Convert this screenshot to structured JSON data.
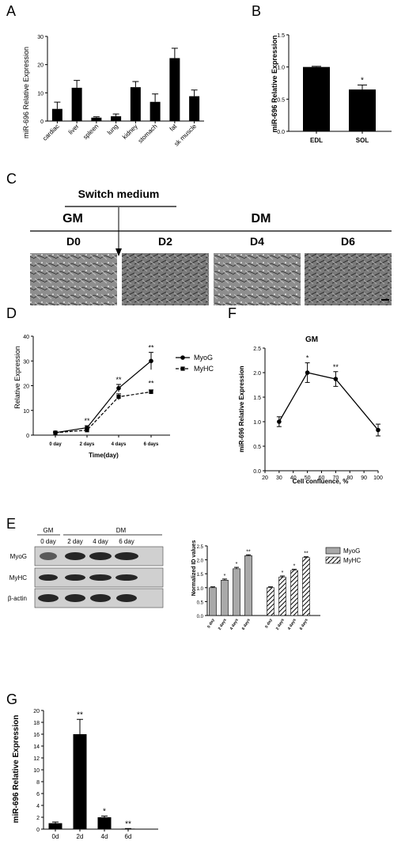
{
  "panels": {
    "A": {
      "letter": "A",
      "chart_data": {
        "type": "bar",
        "ylabel": "miR-696 Relative Expression",
        "ylim": [
          0,
          30
        ],
        "yticks": [
          0,
          10,
          20,
          30
        ],
        "categories": [
          "cardiac",
          "liver",
          "spleen",
          "lung",
          "kidney",
          "stomach",
          "fat",
          "sk muscle"
        ],
        "values": [
          4.3,
          11.8,
          1.2,
          1.7,
          12.0,
          6.8,
          22.3,
          8.8
        ],
        "errors": [
          2.4,
          2.6,
          0.3,
          0.8,
          2.0,
          2.8,
          3.5,
          2.2
        ],
        "color": "#000000"
      }
    },
    "B": {
      "letter": "B",
      "chart_data": {
        "type": "bar",
        "ylabel": "miR-696 Relative Expression",
        "ylim": [
          0,
          1.5
        ],
        "yticks": [
          "0.0",
          "0.5",
          "1.0",
          "1.5"
        ],
        "categories": [
          "EDL",
          "SOL"
        ],
        "values": [
          1.0,
          0.65
        ],
        "errors": [
          0.01,
          0.07
        ],
        "annotations": [
          "",
          "*"
        ]
      }
    },
    "C": {
      "letter": "C",
      "switch_label": "Switch medium",
      "gm_label": "GM",
      "dm_label": "DM",
      "days": [
        "D0",
        "D2",
        "D4",
        "D6"
      ]
    },
    "D": {
      "letter": "D",
      "chart_data": {
        "type": "line",
        "xlabel": "Time(day)",
        "ylabel": "Relative Expression",
        "categories": [
          "0 day",
          "2 days",
          "4 days",
          "6 days"
        ],
        "ylim": [
          0,
          40
        ],
        "yticks": [
          0,
          10,
          20,
          30,
          40
        ],
        "series": [
          {
            "name": "MyoG",
            "values": [
              1,
              3,
              19,
              30
            ],
            "errors": [
              0.3,
              0.8,
              1.5,
              3.5
            ],
            "annotations": [
              "",
              "**",
              "**",
              "**"
            ]
          },
          {
            "name": "MyHC",
            "values": [
              1,
              2,
              15.5,
              17.5
            ],
            "errors": [
              0.3,
              0.5,
              1.2,
              0.8
            ],
            "annotations": [
              "",
              "",
              "",
              "**"
            ]
          }
        ]
      }
    },
    "F": {
      "letter": "F",
      "chart_data": {
        "type": "line",
        "title": "GM",
        "xlabel": "Cell confluence, %",
        "ylabel": "miR-696 Relative Expression",
        "x": [
          30,
          50,
          70,
          100
        ],
        "y": [
          1.0,
          2.0,
          1.87,
          0.83
        ],
        "errors": [
          0.1,
          0.2,
          0.15,
          0.12
        ],
        "annotations": [
          "",
          "*",
          "**",
          ""
        ],
        "xlim": [
          20,
          100
        ],
        "xticks": [
          20,
          30,
          40,
          50,
          60,
          70,
          80,
          90,
          100
        ],
        "ylim": [
          0,
          2.5
        ],
        "yticks": [
          "0.0",
          "0.5",
          "1.0",
          "1.5",
          "2.0",
          "2.5"
        ]
      }
    },
    "E": {
      "letter": "E",
      "blot": {
        "gm_label": "GM",
        "dm_label": "DM",
        "lanes": [
          "0 day",
          "2 day",
          "4 day",
          "6 day"
        ],
        "rows": [
          "MyoG",
          "MyHC",
          "β-actin"
        ]
      },
      "chart_data": {
        "type": "bar",
        "ylabel": "Normalized ID values",
        "ylim": [
          0,
          2.5
        ],
        "yticks": [
          "0.0",
          "0.5",
          "1.0",
          "1.5",
          "2.0",
          "2.5"
        ],
        "categories": [
          "0 day",
          "2 days",
          "4 days",
          "6 days"
        ],
        "series": [
          {
            "name": "MyoG",
            "values": [
              1.0,
              1.27,
              1.68,
              2.15
            ],
            "errors": [
              0.03,
              0.04,
              0.05,
              0.03
            ],
            "annotations": [
              "",
              "*",
              "*",
              "**"
            ]
          },
          {
            "name": "MyHC",
            "values": [
              1.0,
              1.38,
              1.62,
              2.08
            ],
            "errors": [
              0.03,
              0.04,
              0.04,
              0.03
            ],
            "annotations": [
              "",
              "*",
              "*",
              "**"
            ]
          }
        ]
      }
    },
    "G": {
      "letter": "G",
      "chart_data": {
        "type": "bar",
        "ylabel": "miR-696 Relative Expression",
        "ylim": [
          0,
          20
        ],
        "yticks": [
          0,
          2,
          4,
          6,
          8,
          10,
          12,
          14,
          16,
          18,
          20
        ],
        "categories": [
          "0d",
          "2d",
          "4d",
          "6d"
        ],
        "values": [
          1.0,
          16.0,
          2.0,
          0.08
        ],
        "errors": [
          0.2,
          2.5,
          0.2,
          0.02
        ],
        "annotations": [
          "",
          "**",
          "*",
          "**"
        ]
      }
    }
  }
}
